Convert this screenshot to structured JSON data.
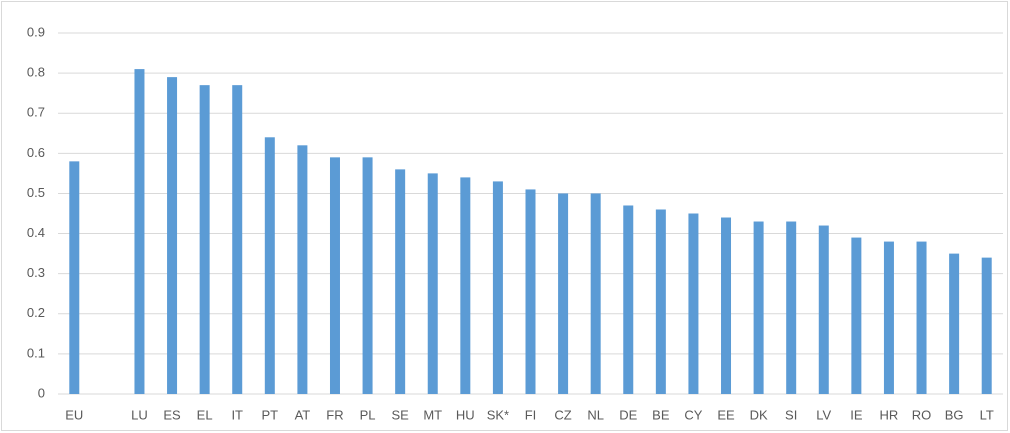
{
  "chart_data": {
    "type": "bar",
    "categories": [
      "EU",
      null,
      "LU",
      "ES",
      "EL",
      "IT",
      "PT",
      "AT",
      "FR",
      "PL",
      "SE",
      "MT",
      "HU",
      "SK*",
      "FI",
      "CZ",
      "NL",
      "DE",
      "BE",
      "CY",
      "EE",
      "DK",
      "SI",
      "LV",
      "IE",
      "HR",
      "RO",
      "BG",
      "LT"
    ],
    "values": [
      0.58,
      null,
      0.81,
      0.79,
      0.77,
      0.77,
      0.64,
      0.62,
      0.59,
      0.59,
      0.56,
      0.55,
      0.54,
      0.53,
      0.51,
      0.5,
      0.5,
      0.47,
      0.46,
      0.45,
      0.44,
      0.43,
      0.43,
      0.42,
      0.39,
      0.38,
      0.38,
      0.35,
      0.34
    ],
    "color": "#5b9bd5",
    "ylim": [
      0,
      0.9
    ],
    "yticks": [
      0,
      0.1,
      0.2,
      0.3,
      0.4,
      0.5,
      0.6,
      0.7,
      0.8,
      0.9
    ],
    "grid": true
  }
}
